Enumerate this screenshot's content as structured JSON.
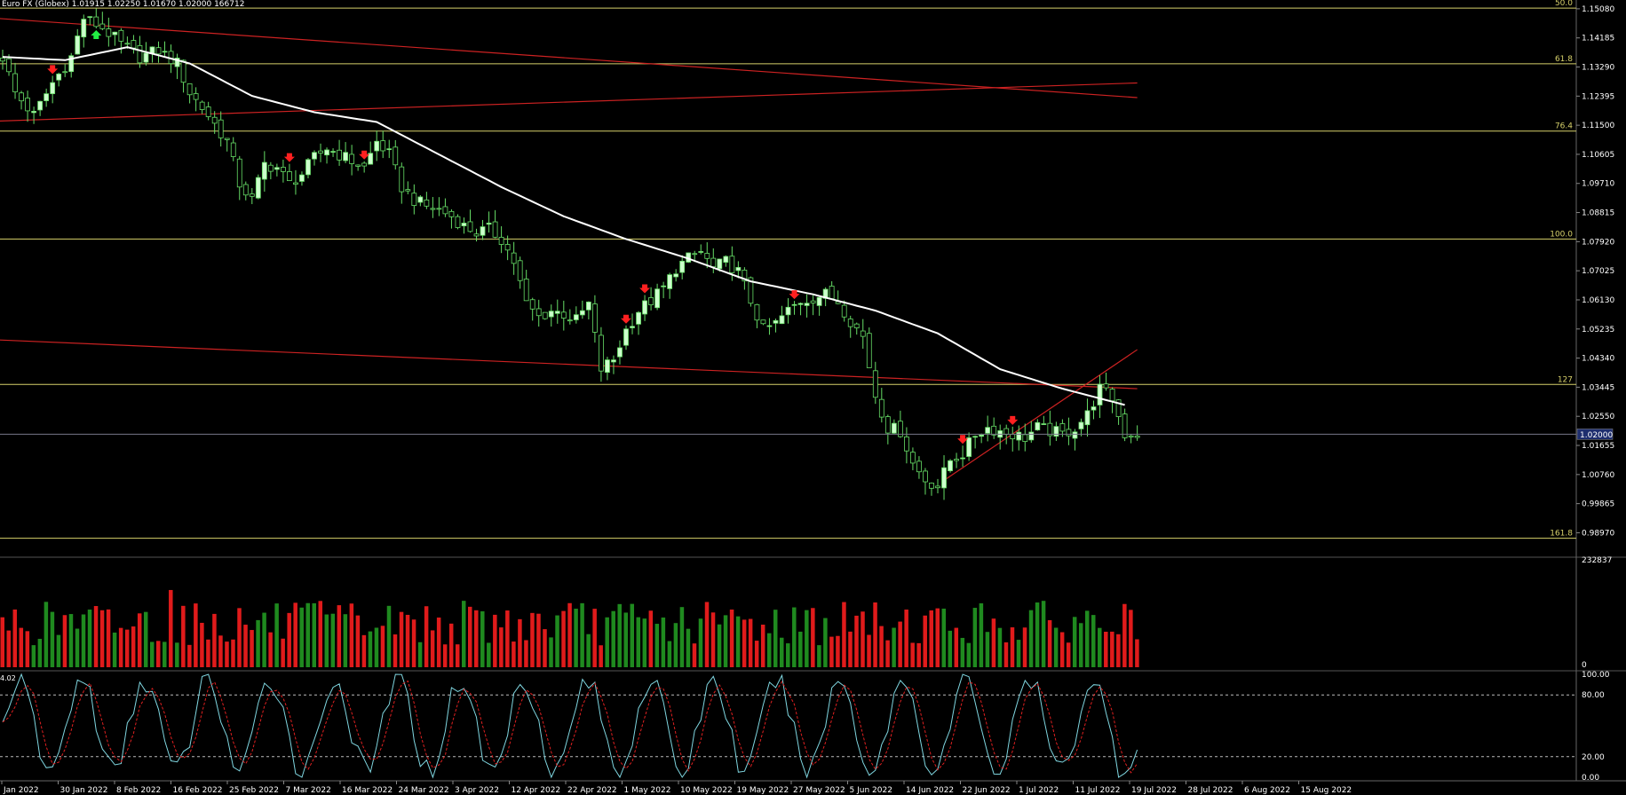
{
  "header": {
    "symbol": "Euro FX (Globex)",
    "ohlcv": "1.01915 1.02250 1.01670 1.02000  166712"
  },
  "price_axis": {
    "ticks": [
      "1.15080",
      "1.14185",
      "1.13290",
      "1.12395",
      "1.11500",
      "1.10605",
      "1.09710",
      "1.08815",
      "1.07920",
      "1.07025",
      "1.06130",
      "1.05235",
      "1.04340",
      "1.03445",
      "1.02550",
      "1.01655",
      "1.00760",
      "0.99865",
      "0.98970"
    ],
    "current": "1.02000"
  },
  "fib_levels": [
    {
      "label": "50.0",
      "price": 1.151
    },
    {
      "label": "61.8",
      "price": 1.1339
    },
    {
      "label": "76.4",
      "price": 1.1132
    },
    {
      "label": "100.0",
      "price": 1.08
    },
    {
      "label": "127",
      "price": 1.0353
    },
    {
      "label": "161.8",
      "price": 0.988
    }
  ],
  "volume_axis": {
    "max_label": "232837",
    "zero_label": "0"
  },
  "oscillator_axis": {
    "ticks": [
      "100.00",
      "80.00",
      "20.00",
      "0.00"
    ],
    "level_label": "4.02"
  },
  "date_labels": [
    "Jan 2022",
    "30 Jan 2022",
    "8 Feb 2022",
    "16 Feb 2022",
    "25 Feb 2022",
    "7 Mar 2022",
    "16 Mar 2022",
    "24 Mar 2022",
    "3 Apr 2022",
    "12 Apr 2022",
    "22 Apr 2022",
    "1 May 2022",
    "10 May 2022",
    "19 May 2022",
    "27 May 2022",
    "5 Jun 2022",
    "14 Jun 2022",
    "22 Jun 2022",
    "1 Jul 2022",
    "11 Jul 2022",
    "19 Jul 2022",
    "28 Jul 2022",
    "6 Aug 2022",
    "15 Aug 2022"
  ],
  "colors": {
    "background": "#000000",
    "bull_candle": "#ccffcc",
    "bear_candle": "#000000",
    "candle_outline": "#66dd66",
    "moving_average": "#ffffff",
    "fib_line": "#d6d06a",
    "trend_line": "#cc2222",
    "volume_up": "#1f8a1f",
    "volume_down": "#e01b1b",
    "stoch_k": "#7fd6e0",
    "stoch_d": "#e02020",
    "current_price_tag": "#1e2e6e"
  },
  "chart_data": {
    "type": "candlestick",
    "title": "Euro FX (Globex)",
    "ylim": [
      0.983,
      1.1535
    ],
    "close_path": [
      [
        0,
        1.136
      ],
      [
        2,
        1.125
      ],
      [
        5,
        1.118
      ],
      [
        8,
        1.128
      ],
      [
        11,
        1.136
      ],
      [
        13,
        1.148
      ],
      [
        16,
        1.145
      ],
      [
        19,
        1.14
      ],
      [
        22,
        1.136
      ],
      [
        25,
        1.138
      ],
      [
        28,
        1.134
      ],
      [
        30,
        1.125
      ],
      [
        33,
        1.118
      ],
      [
        36,
        1.11
      ],
      [
        38,
        1.097
      ],
      [
        40,
        1.092
      ],
      [
        42,
        1.103
      ],
      [
        44,
        1.102
      ],
      [
        46,
        1.097
      ],
      [
        48,
        1.1
      ],
      [
        50,
        1.105
      ],
      [
        52,
        1.108
      ],
      [
        54,
        1.106
      ],
      [
        56,
        1.104
      ],
      [
        58,
        1.102
      ],
      [
        60,
        1.11
      ],
      [
        62,
        1.106
      ],
      [
        64,
        1.096
      ],
      [
        66,
        1.092
      ],
      [
        68,
        1.09
      ],
      [
        70,
        1.089
      ],
      [
        72,
        1.087
      ],
      [
        74,
        1.084
      ],
      [
        76,
        1.082
      ],
      [
        78,
        1.083
      ],
      [
        80,
        1.08
      ],
      [
        82,
        1.073
      ],
      [
        84,
        1.06
      ],
      [
        86,
        1.056
      ],
      [
        88,
        1.058
      ],
      [
        90,
        1.057
      ],
      [
        92,
        1.055
      ],
      [
        94,
        1.06
      ],
      [
        96,
        1.04
      ],
      [
        98,
        1.043
      ],
      [
        100,
        1.052
      ],
      [
        102,
        1.058
      ],
      [
        104,
        1.061
      ],
      [
        106,
        1.065
      ],
      [
        108,
        1.071
      ],
      [
        110,
        1.074
      ],
      [
        112,
        1.076
      ],
      [
        114,
        1.071
      ],
      [
        116,
        1.073
      ],
      [
        118,
        1.07
      ],
      [
        120,
        1.061
      ],
      [
        122,
        1.052
      ],
      [
        124,
        1.054
      ],
      [
        126,
        1.058
      ],
      [
        128,
        1.061
      ],
      [
        130,
        1.062
      ],
      [
        132,
        1.063
      ],
      [
        134,
        1.061
      ],
      [
        136,
        1.055
      ],
      [
        138,
        1.05
      ],
      [
        140,
        1.032
      ],
      [
        142,
        1.022
      ],
      [
        144,
        1.021
      ],
      [
        146,
        1.011
      ],
      [
        148,
        1.006
      ],
      [
        150,
        1.004
      ],
      [
        152,
        1.012
      ],
      [
        154,
        1.014
      ],
      [
        156,
        1.02
      ],
      [
        158,
        1.022
      ],
      [
        160,
        1.021
      ],
      [
        162,
        1.02
      ],
      [
        164,
        1.019
      ],
      [
        166,
        1.022
      ],
      [
        168,
        1.021
      ],
      [
        170,
        1.02
      ],
      [
        172,
        1.022
      ],
      [
        174,
        1.026
      ],
      [
        176,
        1.034
      ],
      [
        178,
        1.031
      ],
      [
        180,
        1.02
      ],
      [
        182,
        1.02
      ]
    ],
    "moving_average": [
      [
        0,
        1.136
      ],
      [
        10,
        1.135
      ],
      [
        20,
        1.139
      ],
      [
        30,
        1.134
      ],
      [
        40,
        1.124
      ],
      [
        50,
        1.119
      ],
      [
        60,
        1.116
      ],
      [
        70,
        1.106
      ],
      [
        80,
        1.096
      ],
      [
        90,
        1.087
      ],
      [
        100,
        1.08
      ],
      [
        110,
        1.074
      ],
      [
        120,
        1.067
      ],
      [
        130,
        1.063
      ],
      [
        140,
        1.058
      ],
      [
        150,
        1.051
      ],
      [
        160,
        1.04
      ],
      [
        170,
        1.034
      ],
      [
        180,
        1.029
      ]
    ],
    "trend_lines": [
      {
        "from": [
          -2,
          1.148
        ],
        "to": [
          182,
          1.1235
        ]
      },
      {
        "from": [
          -2,
          1.1162
        ],
        "to": [
          182,
          1.128
        ]
      },
      {
        "from": [
          -2,
          1.0491
        ],
        "to": [
          182,
          1.034
        ]
      },
      {
        "from": [
          151,
          1.0058
        ],
        "to": [
          182,
          1.046
        ]
      }
    ],
    "signals": [
      {
        "i": 8,
        "dir": "down"
      },
      {
        "i": 15,
        "dir": "up"
      },
      {
        "i": 46,
        "dir": "down"
      },
      {
        "i": 58,
        "dir": "down"
      },
      {
        "i": 100,
        "dir": "down"
      },
      {
        "i": 103,
        "dir": "down"
      },
      {
        "i": 127,
        "dir": "down"
      },
      {
        "i": 154,
        "dir": "down"
      },
      {
        "i": 162,
        "dir": "down"
      }
    ],
    "volume_max": 232837,
    "stochastic_levels": [
      80,
      20
    ]
  }
}
